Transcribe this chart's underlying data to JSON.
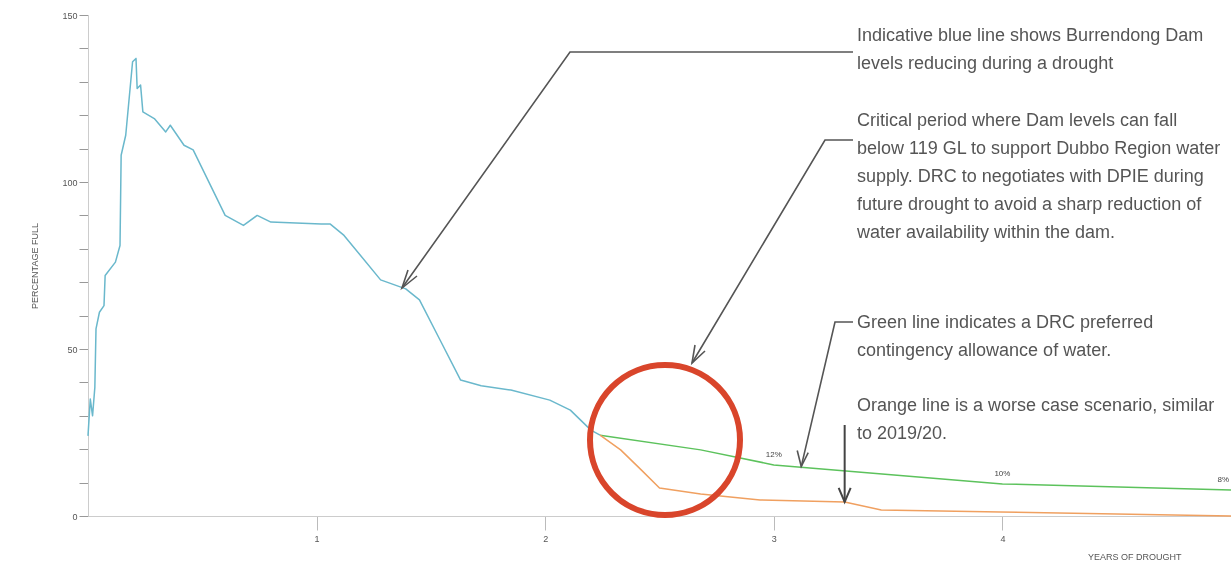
{
  "chart_data": {
    "type": "line",
    "xlabel": "YEARS OF DROUGHT",
    "ylabel": "PERCENTAGE FULL",
    "xlim": [
      0,
      5
    ],
    "xticks": [
      1,
      2,
      3,
      4
    ],
    "ylim": [
      0,
      150
    ],
    "yticks": [
      0,
      {
        "value": 10,
        "label": null
      },
      {
        "value": 20,
        "label": null
      },
      {
        "value": 30,
        "label": null
      },
      {
        "value": 40,
        "label": null
      },
      50,
      {
        "value": 60,
        "label": null
      },
      {
        "value": 70,
        "label": null
      },
      {
        "value": 80,
        "label": null
      },
      {
        "value": 90,
        "label": null
      },
      100,
      {
        "value": 110,
        "label": null
      },
      {
        "value": 120,
        "label": null
      },
      {
        "value": 130,
        "label": null
      },
      {
        "value": 140,
        "label": null
      },
      150
    ],
    "grid": false,
    "marker": "none",
    "line_style": "solid",
    "series": [
      {
        "color": "#6ab8cc",
        "x": [
          0,
          0.01,
          0.02,
          0.03,
          0.035,
          0.05,
          0.07,
          0.075,
          0.12,
          0.14,
          0.145,
          0.165,
          0.195,
          0.21,
          0.215,
          0.23,
          0.24,
          0.29,
          0.34,
          0.36,
          0.42,
          0.46,
          0.6,
          0.68,
          0.74,
          0.8,
          1.02,
          1.06,
          1.12,
          1.28,
          1.39,
          1.45,
          1.54,
          1.63,
          1.72,
          1.85,
          2.02,
          2.11,
          2.2,
          2.24
        ],
        "values": [
          24,
          35,
          30,
          38.6,
          56,
          61,
          63,
          72,
          76,
          81,
          108,
          114,
          136,
          137,
          128,
          129,
          121,
          119,
          115,
          117,
          111,
          109.6,
          90,
          87,
          90,
          88,
          87.4,
          87.4,
          84,
          70.7,
          68,
          64.7,
          52.7,
          40.7,
          39,
          37.7,
          34.7,
          31.7,
          25.7,
          24.2
        ]
      },
      {
        "color": "#5cc25c",
        "x": [
          2.24,
          2.68,
          3.0,
          4.0,
          5.0
        ],
        "values": [
          24.2,
          19.8,
          15.3,
          9.6,
          7.8
        ]
      },
      {
        "color": "#f0a060",
        "x": [
          2.24,
          2.33,
          2.42,
          2.5,
          2.68,
          2.94,
          3.31,
          3.47,
          3.99,
          5.0
        ],
        "values": [
          24.2,
          19.8,
          13.8,
          8.4,
          6.6,
          4.8,
          4.2,
          1.8,
          1.2,
          0
        ]
      }
    ],
    "annotations": [
      "Indicative blue line shows Burrendong Dam levels reducing during a drought",
      "Critical period where Dam levels can fall below 119 GL to support Dubbo Region water supply. DRC to negotiates with DPIE during future drought to avoid a sharp reduction of water availability within the dam.",
      {
        "text": "Green line indicates a DRC preferred contingency allowance of water.",
        "x": 3.12,
        "y": 14.8
      },
      {
        "text": "Orange line is a worse case scenario, similar to 2019/20.",
        "x": 3.31,
        "y": 4.2
      },
      {
        "text": "12%",
        "x": 3.0,
        "y": 15.3
      },
      {
        "text": "10%",
        "x": 4.0,
        "y": 9.6
      },
      {
        "text": "8%",
        "x": 5.0,
        "y": 7.8
      }
    ]
  }
}
